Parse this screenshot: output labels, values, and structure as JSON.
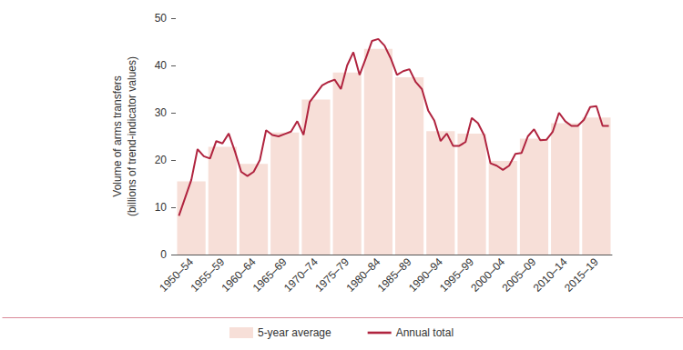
{
  "chart_data": {
    "type": "bar",
    "y_label": "Volume of arms transfers\n(billions of trend-indicator values)",
    "categories": [
      null,
      null,
      "1950–54",
      null,
      null,
      null,
      null,
      "1955–59",
      null,
      null,
      null,
      null,
      "1960–64",
      null,
      null,
      null,
      null,
      "1965–69",
      null,
      null,
      null,
      null,
      "1970–74",
      null,
      null,
      null,
      null,
      "1975–79",
      null,
      null,
      null,
      null,
      "1980–84",
      null,
      null,
      null,
      null,
      "1985–89",
      null,
      null,
      null,
      null,
      "1990–94",
      null,
      null,
      null,
      null,
      "1995–99",
      null,
      null,
      null,
      null,
      "2000–04",
      null,
      null,
      null,
      null,
      "2005–09",
      null,
      null,
      null,
      null,
      "2010–14",
      null,
      null,
      null,
      null,
      "2015–19",
      null,
      null
    ],
    "series": [
      {
        "name": "5-year average",
        "type": "bar",
        "color": "#f7dfd8",
        "values": [
          null,
          null,
          15.5,
          null,
          null,
          null,
          null,
          22.8,
          null,
          null,
          null,
          null,
          19.2,
          null,
          null,
          null,
          null,
          25.8,
          null,
          null,
          null,
          null,
          32.8,
          null,
          null,
          null,
          null,
          38.5,
          null,
          null,
          null,
          null,
          43.5,
          null,
          null,
          null,
          null,
          37.5,
          null,
          null,
          null,
          null,
          26.1,
          null,
          null,
          null,
          null,
          25.6,
          null,
          null,
          null,
          null,
          19.8,
          null,
          null,
          null,
          null,
          24.5,
          null,
          null,
          null,
          null,
          27.8,
          null,
          null,
          null,
          null,
          29.0,
          null,
          null
        ]
      },
      {
        "name": "Annual total",
        "type": "line",
        "color": "#b0243f",
        "values": [
          8.2,
          12.0,
          15.8,
          22.3,
          20.8,
          20.3,
          24.0,
          23.5,
          25.6,
          21.8,
          17.5,
          16.6,
          17.5,
          20.0,
          26.3,
          25.3,
          25.0,
          25.5,
          26.0,
          28.2,
          25.3,
          32.3,
          34.0,
          35.8,
          36.5,
          37.0,
          35.0,
          40.0,
          42.8,
          38.0,
          41.5,
          45.2,
          45.6,
          44.2,
          41.5,
          38.0,
          38.8,
          39.2,
          36.5,
          35.0,
          30.5,
          28.3,
          24.0,
          25.6,
          23.0,
          23.0,
          23.8,
          28.9,
          27.8,
          25.2,
          19.3,
          18.8,
          17.9,
          18.8,
          21.3,
          21.5,
          25.0,
          26.5,
          24.2,
          24.3,
          26.0,
          30.0,
          28.2,
          27.2,
          27.2,
          28.5,
          31.2,
          31.4,
          27.2,
          27.2
        ]
      }
    ],
    "ylim": [
      0,
      50
    ],
    "yticks": [
      0,
      10,
      20,
      30,
      40,
      50
    ],
    "grid": false,
    "legend": "bottom"
  }
}
